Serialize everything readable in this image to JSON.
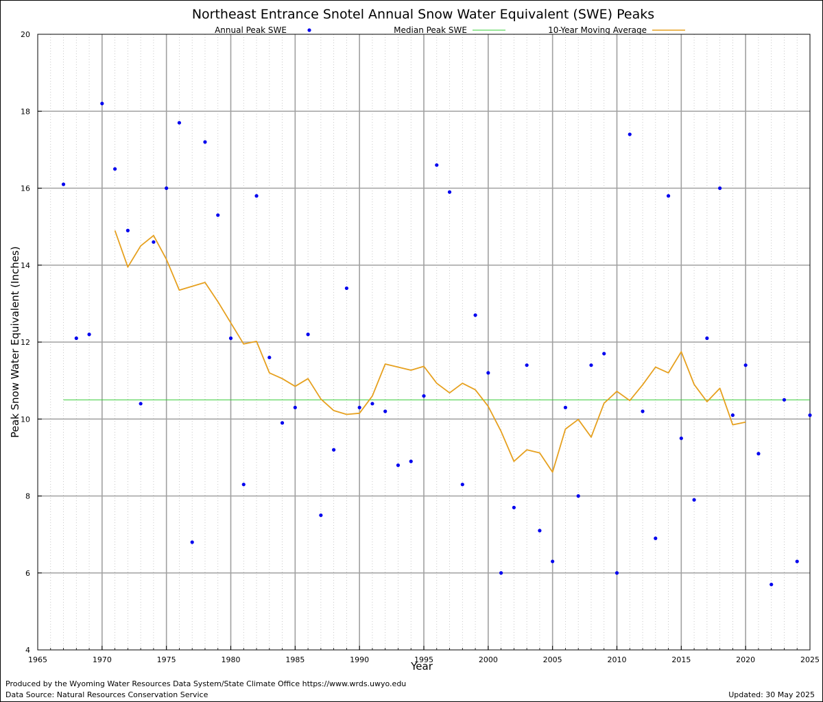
{
  "chart_data": {
    "type": "scatter",
    "title": "Northeast Entrance Snotel Annual Snow Water Equivalent (SWE) Peaks",
    "xlabel": "Year",
    "ylabel": "Peak Snow Water Equivalent (Inches)",
    "xlim": [
      1965,
      2025
    ],
    "ylim": [
      4,
      20
    ],
    "x_major_ticks": [
      1965,
      1970,
      1975,
      1980,
      1985,
      1990,
      1995,
      2000,
      2005,
      2010,
      2015,
      2020,
      2025
    ],
    "y_major_ticks": [
      4,
      6,
      8,
      10,
      12,
      14,
      16,
      18,
      20
    ],
    "grid": true,
    "legend_position": "top",
    "series": [
      {
        "name": "Annual Peak SWE",
        "kind": "points",
        "color": "#0000ee",
        "x": [
          1967,
          1968,
          1969,
          1970,
          1971,
          1972,
          1973,
          1974,
          1975,
          1976,
          1977,
          1978,
          1979,
          1980,
          1981,
          1982,
          1983,
          1984,
          1985,
          1986,
          1987,
          1988,
          1989,
          1990,
          1991,
          1992,
          1993,
          1994,
          1995,
          1996,
          1997,
          1998,
          1999,
          2000,
          2001,
          2002,
          2003,
          2004,
          2005,
          2006,
          2007,
          2008,
          2009,
          2010,
          2011,
          2012,
          2013,
          2014,
          2015,
          2016,
          2017,
          2018,
          2019,
          2020,
          2021,
          2022,
          2023,
          2024,
          2025
        ],
        "y": [
          16.1,
          12.1,
          12.2,
          18.2,
          16.5,
          14.9,
          10.4,
          14.6,
          16.0,
          17.7,
          6.8,
          17.2,
          15.3,
          12.1,
          8.3,
          15.8,
          11.6,
          9.9,
          10.3,
          12.2,
          7.5,
          9.2,
          13.4,
          10.3,
          10.4,
          10.2,
          8.8,
          8.9,
          10.6,
          16.6,
          15.9,
          8.3,
          12.7,
          11.2,
          6.0,
          7.7,
          11.4,
          7.1,
          6.3,
          10.3,
          8.0,
          11.4,
          11.7,
          6.0,
          17.4,
          10.2,
          6.9,
          15.8,
          9.5,
          7.9,
          12.1,
          16.0,
          10.1,
          11.4,
          9.1,
          5.7,
          10.5,
          6.3,
          10.1
        ]
      },
      {
        "name": "Median Peak SWE",
        "kind": "line",
        "color": "#33cc33",
        "x": [
          1967,
          2025
        ],
        "y": [
          10.5,
          10.5
        ]
      },
      {
        "name": "10-Year Moving Average",
        "kind": "line",
        "color": "#e6a01e",
        "x": [
          1971,
          1972,
          1973,
          1974,
          1975,
          1976,
          1977,
          1978,
          1979,
          1980,
          1981,
          1982,
          1983,
          1984,
          1985,
          1986,
          1987,
          1988,
          1989,
          1990,
          1991,
          1992,
          1993,
          1994,
          1995,
          1996,
          1997,
          1998,
          1999,
          2000,
          2001,
          2002,
          2003,
          2004,
          2005,
          2006,
          2007,
          2008,
          2009,
          2010,
          2011,
          2012,
          2013,
          2014,
          2015,
          2016,
          2017,
          2018,
          2019,
          2020
        ],
        "y": [
          14.9,
          13.95,
          14.5,
          14.77,
          14.15,
          13.35,
          13.45,
          13.55,
          13.05,
          12.5,
          11.95,
          12.02,
          11.2,
          11.05,
          10.85,
          11.05,
          10.52,
          10.22,
          10.12,
          10.15,
          10.6,
          11.43,
          11.35,
          11.27,
          11.37,
          10.93,
          10.68,
          10.93,
          10.76,
          10.33,
          9.68,
          8.9,
          9.2,
          9.12,
          8.62,
          9.74,
          9.99,
          9.53,
          10.41,
          10.72,
          10.48,
          10.89,
          11.35,
          11.2,
          11.75,
          10.9,
          10.45,
          10.8,
          9.85,
          9.92
        ]
      }
    ]
  },
  "footer": {
    "produced_by": "Produced by the Wyoming Water Resources Data System/State Climate Office https://www.wrds.uwyo.edu",
    "data_source": "Data Source: Natural Resources Conservation Service",
    "updated": "Updated: 30 May 2025"
  }
}
